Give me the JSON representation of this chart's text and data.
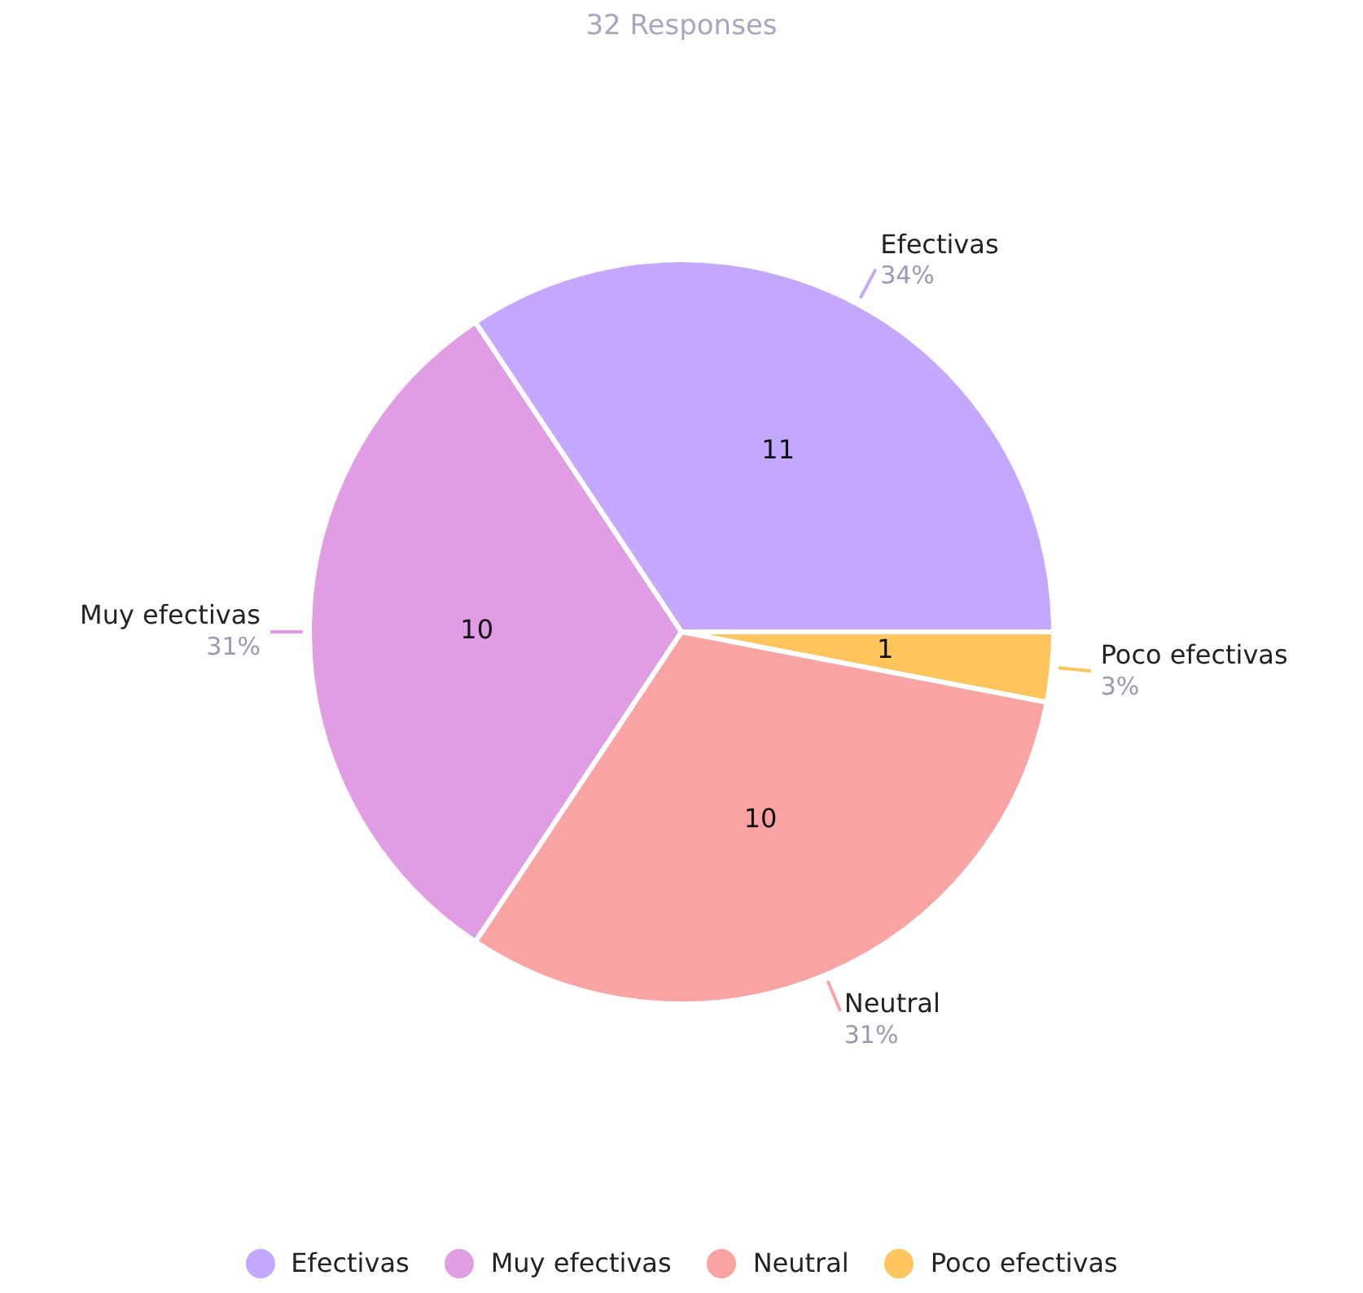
{
  "chart_data": {
    "type": "pie",
    "title": "32 Responses",
    "categories": [
      "Efectivas",
      "Muy efectivas",
      "Neutral",
      "Poco efectivas"
    ],
    "values": [
      34,
      31,
      31,
      3
    ],
    "colors": [
      "#c4a8ff",
      "#e09de3",
      "#f9a3a3",
      "#fcc45a"
    ],
    "annotations": [
      {
        "text": "11",
        "x": "Efectivas"
      },
      {
        "text": "10",
        "x": "Muy efectivas"
      },
      {
        "text": "10",
        "x": "Neutral"
      },
      {
        "text": "1",
        "x": "Poco efectivas"
      }
    ],
    "value_labels": [
      "34%",
      "31%",
      "31%",
      "3%"
    ],
    "legend": "bottom"
  }
}
